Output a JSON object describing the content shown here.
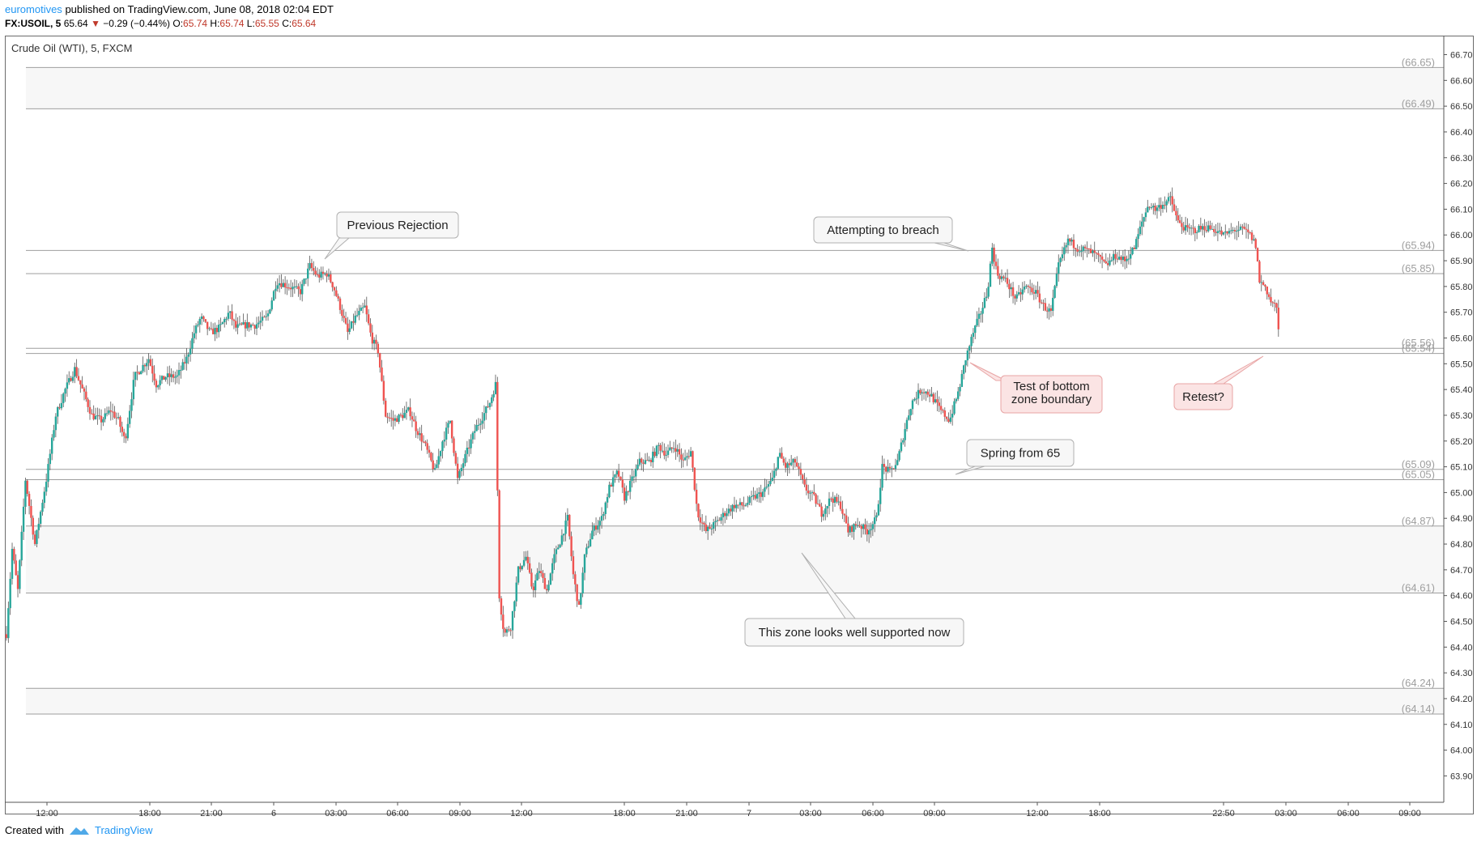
{
  "header": {
    "author": "euromotives",
    "published": "published on TradingView.com, June 08, 2018 02:04 EDT",
    "symbol": "FX:USOIL, 5",
    "last": "65.64",
    "change_arrow": "▼",
    "change": "−0.29 (−0.44%)",
    "open_label": "O:",
    "open": "65.74",
    "high_label": "H:",
    "high": "65.74",
    "low_label": "L:",
    "low": "65.55",
    "close_label": "C:",
    "close": "65.64"
  },
  "footer": {
    "created_with": "Created with",
    "brand": "TradingView"
  },
  "chart_data": {
    "type": "candlestick",
    "title": "Crude Oil (WTI), 5, FXCM",
    "ylim": [
      63.84,
      66.76
    ],
    "y_ticks": [
      66.7,
      66.6,
      66.5,
      66.4,
      66.3,
      66.2,
      66.1,
      66.0,
      65.9,
      65.8,
      65.7,
      65.6,
      65.5,
      65.4,
      65.3,
      65.2,
      65.1,
      65.0,
      64.9,
      64.8,
      64.7,
      64.6,
      64.5,
      64.4,
      64.3,
      64.2,
      64.1,
      64.0,
      63.9
    ],
    "x_ticks": [
      "12:00",
      "18:00",
      "21:00",
      "6",
      "03:00",
      "06:00",
      "09:00",
      "12:00",
      "18:00",
      "21:00",
      "7",
      "03:00",
      "06:00",
      "09:00",
      "12:00",
      "18:00",
      "22:50",
      "03:00",
      "06:00",
      "09:00"
    ],
    "levels": [
      {
        "value": 66.65,
        "label": "(66.65)"
      },
      {
        "value": 66.49,
        "label": "(66.49)"
      },
      {
        "value": 65.94,
        "label": "(65.94)"
      },
      {
        "value": 65.85,
        "label": "(65.85)"
      },
      {
        "value": 65.56,
        "label": "(65.56)"
      },
      {
        "value": 65.54,
        "label": "(65.54)"
      },
      {
        "value": 65.09,
        "label": "(65.09)"
      },
      {
        "value": 65.05,
        "label": "(65.05)"
      },
      {
        "value": 64.87,
        "label": "(64.87)"
      },
      {
        "value": 64.61,
        "label": "(64.61)"
      },
      {
        "value": 64.24,
        "label": "(64.24)"
      },
      {
        "value": 64.14,
        "label": "(64.14)"
      }
    ],
    "zones": [
      {
        "from": 66.49,
        "to": 66.65
      },
      {
        "from": 64.61,
        "to": 64.87
      },
      {
        "from": 64.14,
        "to": 64.24
      }
    ],
    "price_path": [
      [
        0,
        64.45
      ],
      [
        6,
        64.78
      ],
      [
        12,
        64.62
      ],
      [
        20,
        65.05
      ],
      [
        30,
        64.8
      ],
      [
        42,
        65.05
      ],
      [
        52,
        65.3
      ],
      [
        62,
        65.4
      ],
      [
        72,
        65.48
      ],
      [
        82,
        65.38
      ],
      [
        90,
        65.3
      ],
      [
        100,
        65.28
      ],
      [
        110,
        65.32
      ],
      [
        118,
        65.28
      ],
      [
        125,
        65.2
      ],
      [
        135,
        65.45
      ],
      [
        150,
        65.52
      ],
      [
        158,
        65.42
      ],
      [
        168,
        65.45
      ],
      [
        180,
        65.45
      ],
      [
        190,
        65.52
      ],
      [
        198,
        65.62
      ],
      [
        205,
        65.68
      ],
      [
        215,
        65.62
      ],
      [
        225,
        65.64
      ],
      [
        235,
        65.7
      ],
      [
        242,
        65.64
      ],
      [
        252,
        65.65
      ],
      [
        262,
        65.65
      ],
      [
        275,
        65.68
      ],
      [
        285,
        65.82
      ],
      [
        298,
        65.8
      ],
      [
        310,
        65.78
      ],
      [
        320,
        65.88
      ],
      [
        328,
        65.84
      ],
      [
        338,
        65.85
      ],
      [
        345,
        65.8
      ],
      [
        352,
        65.72
      ],
      [
        360,
        65.62
      ],
      [
        368,
        65.68
      ],
      [
        378,
        65.72
      ],
      [
        385,
        65.6
      ],
      [
        392,
        65.55
      ],
      [
        400,
        65.3
      ],
      [
        408,
        65.28
      ],
      [
        418,
        65.3
      ],
      [
        425,
        65.32
      ],
      [
        432,
        65.25
      ],
      [
        442,
        65.18
      ],
      [
        452,
        65.08
      ],
      [
        460,
        65.2
      ],
      [
        468,
        65.28
      ],
      [
        476,
        65.05
      ],
      [
        485,
        65.15
      ],
      [
        495,
        65.25
      ],
      [
        503,
        65.3
      ],
      [
        510,
        65.35
      ],
      [
        516,
        65.42
      ],
      [
        520,
        64.6
      ],
      [
        525,
        64.45
      ],
      [
        532,
        64.48
      ],
      [
        540,
        64.7
      ],
      [
        548,
        64.75
      ],
      [
        555,
        64.62
      ],
      [
        562,
        64.7
      ],
      [
        570,
        64.62
      ],
      [
        578,
        64.75
      ],
      [
        585,
        64.82
      ],
      [
        592,
        64.9
      ],
      [
        598,
        64.68
      ],
      [
        604,
        64.55
      ],
      [
        610,
        64.75
      ],
      [
        618,
        64.85
      ],
      [
        628,
        64.9
      ],
      [
        636,
        65.02
      ],
      [
        645,
        65.08
      ],
      [
        652,
        64.98
      ],
      [
        660,
        65.05
      ],
      [
        668,
        65.12
      ],
      [
        678,
        65.12
      ],
      [
        688,
        65.18
      ],
      [
        696,
        65.15
      ],
      [
        705,
        65.18
      ],
      [
        714,
        65.12
      ],
      [
        722,
        65.16
      ],
      [
        729,
        64.92
      ],
      [
        738,
        64.85
      ],
      [
        748,
        64.88
      ],
      [
        758,
        64.92
      ],
      [
        768,
        64.95
      ],
      [
        778,
        64.95
      ],
      [
        788,
        64.98
      ],
      [
        798,
        65.0
      ],
      [
        808,
        65.05
      ],
      [
        815,
        65.15
      ],
      [
        822,
        65.1
      ],
      [
        832,
        65.12
      ],
      [
        842,
        65.02
      ],
      [
        852,
        64.98
      ],
      [
        860,
        64.92
      ],
      [
        870,
        64.98
      ],
      [
        880,
        64.95
      ],
      [
        888,
        64.85
      ],
      [
        898,
        64.88
      ],
      [
        908,
        64.85
      ],
      [
        918,
        64.9
      ],
      [
        924,
        65.1
      ],
      [
        932,
        65.08
      ],
      [
        940,
        65.12
      ],
      [
        948,
        65.25
      ],
      [
        955,
        65.35
      ],
      [
        965,
        65.4
      ],
      [
        975,
        65.38
      ],
      [
        985,
        65.32
      ],
      [
        995,
        65.28
      ],
      [
        1005,
        65.4
      ],
      [
        1012,
        65.52
      ],
      [
        1020,
        65.62
      ],
      [
        1028,
        65.7
      ],
      [
        1035,
        65.78
      ],
      [
        1040,
        65.95
      ],
      [
        1045,
        65.85
      ],
      [
        1055,
        65.82
      ],
      [
        1065,
        65.75
      ],
      [
        1075,
        65.8
      ],
      [
        1085,
        65.78
      ],
      [
        1095,
        65.72
      ],
      [
        1102,
        65.7
      ],
      [
        1110,
        65.88
      ],
      [
        1120,
        65.98
      ],
      [
        1130,
        65.95
      ],
      [
        1140,
        65.94
      ],
      [
        1150,
        65.92
      ],
      [
        1160,
        65.88
      ],
      [
        1170,
        65.92
      ],
      [
        1180,
        65.9
      ],
      [
        1190,
        65.95
      ],
      [
        1198,
        66.05
      ],
      [
        1205,
        66.12
      ],
      [
        1212,
        66.1
      ],
      [
        1220,
        66.12
      ],
      [
        1228,
        66.14
      ],
      [
        1236,
        66.05
      ],
      [
        1245,
        66.02
      ],
      [
        1255,
        66.02
      ],
      [
        1265,
        66.03
      ],
      [
        1275,
        66.02
      ],
      [
        1285,
        66.0
      ],
      [
        1295,
        66.02
      ],
      [
        1305,
        66.02
      ],
      [
        1312,
        66.0
      ],
      [
        1318,
        65.96
      ],
      [
        1322,
        65.82
      ],
      [
        1328,
        65.8
      ],
      [
        1334,
        65.74
      ],
      [
        1340,
        65.72
      ],
      [
        1342,
        65.62
      ]
    ],
    "annotations": [
      {
        "text": "Previous Rejection",
        "style": "neutral"
      },
      {
        "text": "Attempting to breach",
        "style": "neutral"
      },
      {
        "text": "Test of bottom zone boundary",
        "style": "red"
      },
      {
        "text": "Retest?",
        "style": "red"
      },
      {
        "text": "Spring from 65",
        "style": "neutral"
      },
      {
        "text": "This zone looks well supported now",
        "style": "neutral"
      }
    ],
    "colors": {
      "up": "#26a69a",
      "down": "#ef5350",
      "level_line": "#9e9e9e",
      "zone_fill": "#f7f7f7",
      "callout_red_fill": "#fbe4e4",
      "callout_neutral_fill": "#f7f7f7"
    }
  }
}
